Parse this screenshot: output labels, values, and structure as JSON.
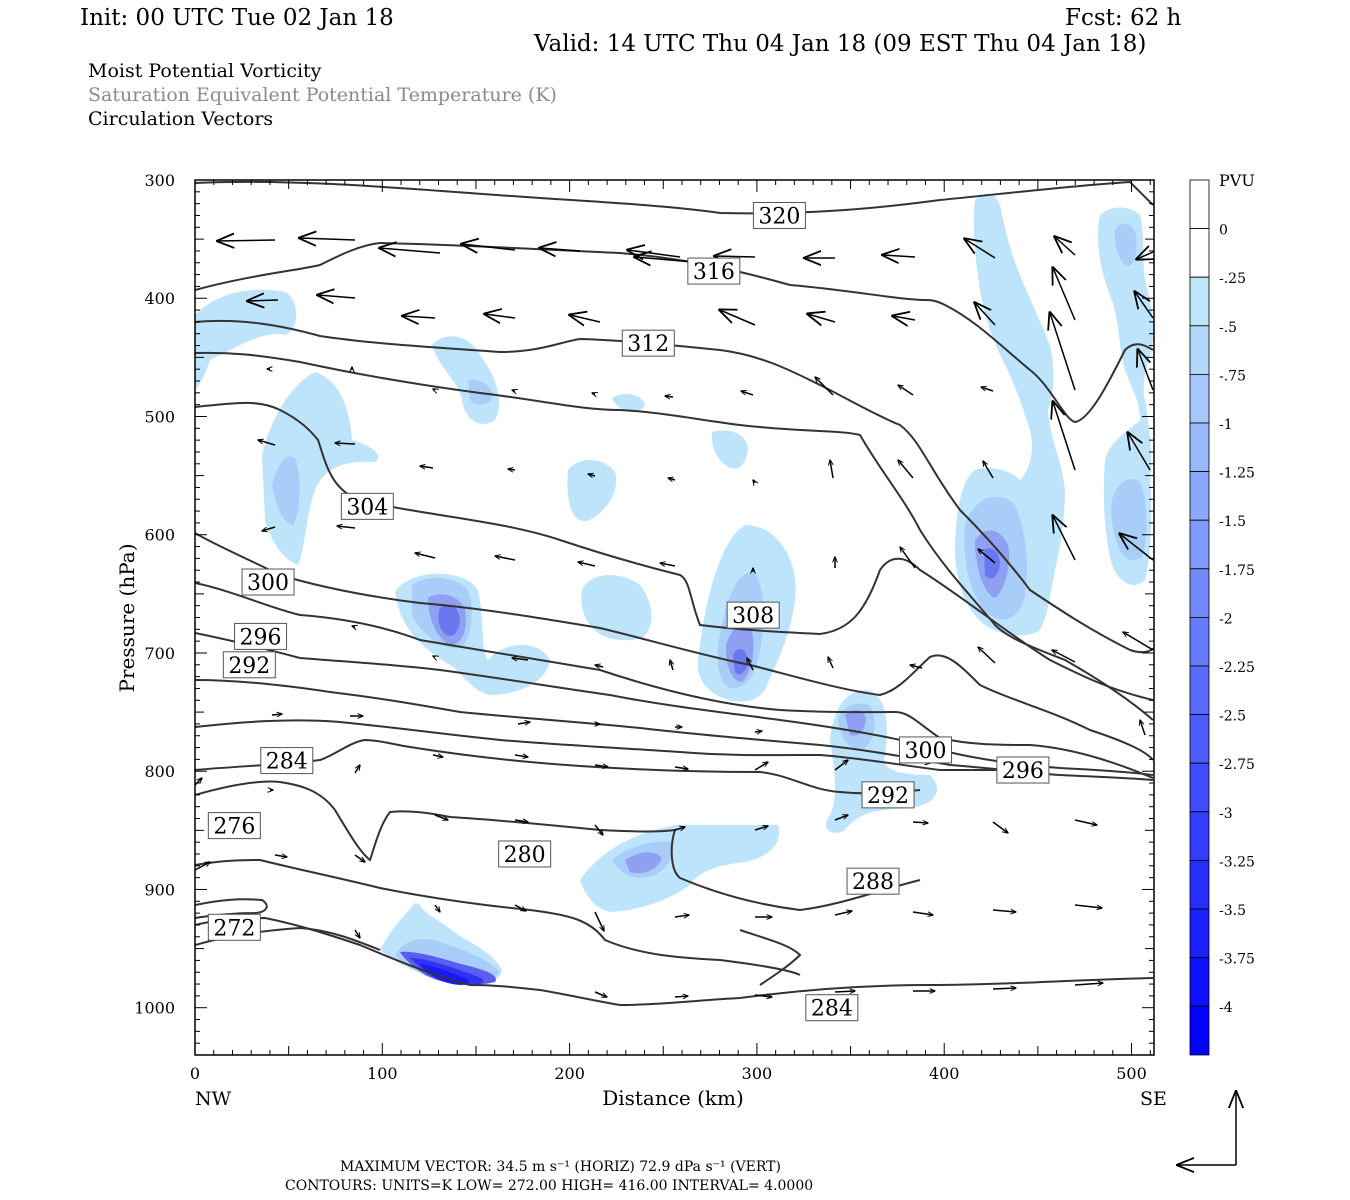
{
  "header": {
    "init": "Init: 00 UTC Tue 02 Jan 18",
    "fcst": "Fcst:   62 h",
    "valid": "Valid: 14 UTC Thu 04 Jan 18 (09 EST Thu 04 Jan 18)",
    "field1": "Moist Potential Vorticity",
    "field2": "Saturation Equivalent Potential Temperature (K)",
    "field3": "Circulation Vectors"
  },
  "footer": {
    "max_vector": "MAXIMUM VECTOR:  34.5 m s⁻¹ (HORIZ)          72.9 dPa s⁻¹ (VERT)",
    "contours": "CONTOURS:  UNITS=K  LOW=  272.00          HIGH=  416.00          INTERVAL=     4.0000"
  },
  "colors": {
    "contour": "#333333",
    "shade_light": "#bde4fb",
    "shade_mid": "#9fb8f6",
    "shade_dark": "#1f1fff"
  },
  "chart_data": {
    "type": "contour",
    "xlabel": "Distance (km)",
    "ylabel": "Pressure (hPa)",
    "x_left_label": "NW",
    "x_right_label": "SE",
    "xlim": [
      0,
      512
    ],
    "ylim": [
      1040,
      300
    ],
    "x_ticks": [
      0,
      100,
      200,
      300,
      400,
      500
    ],
    "y_ticks": [
      300,
      400,
      500,
      600,
      700,
      800,
      900,
      1000
    ],
    "contour_labels": [
      {
        "text": "320",
        "x": 312,
        "p": 330
      },
      {
        "text": "316",
        "x": 277,
        "p": 377
      },
      {
        "text": "312",
        "x": 242,
        "p": 438
      },
      {
        "text": "308",
        "x": 298,
        "p": 668
      },
      {
        "text": "304",
        "x": 92,
        "p": 576
      },
      {
        "text": "300",
        "x": 39,
        "p": 640
      },
      {
        "text": "296",
        "x": 35,
        "p": 686
      },
      {
        "text": "292",
        "x": 29,
        "p": 710
      },
      {
        "text": "300",
        "x": 390,
        "p": 782
      },
      {
        "text": "296",
        "x": 442,
        "p": 799
      },
      {
        "text": "292",
        "x": 370,
        "p": 820
      },
      {
        "text": "284",
        "x": 49,
        "p": 791
      },
      {
        "text": "276",
        "x": 21,
        "p": 846
      },
      {
        "text": "280",
        "x": 176,
        "p": 870
      },
      {
        "text": "288",
        "x": 362,
        "p": 893
      },
      {
        "text": "272",
        "x": 21,
        "p": 932
      },
      {
        "text": "284",
        "x": 340,
        "p": 1000
      }
    ],
    "colorbar": {
      "title": "PVU",
      "labels": [
        "0",
        "-.25",
        "-.5",
        "-.75",
        "-1",
        "-1.25",
        "-1.5",
        "-1.75",
        "-2",
        "-2.25",
        "-2.5",
        "-2.75",
        "-3",
        "-3.25",
        "-3.5",
        "-3.75",
        "-4"
      ]
    }
  }
}
